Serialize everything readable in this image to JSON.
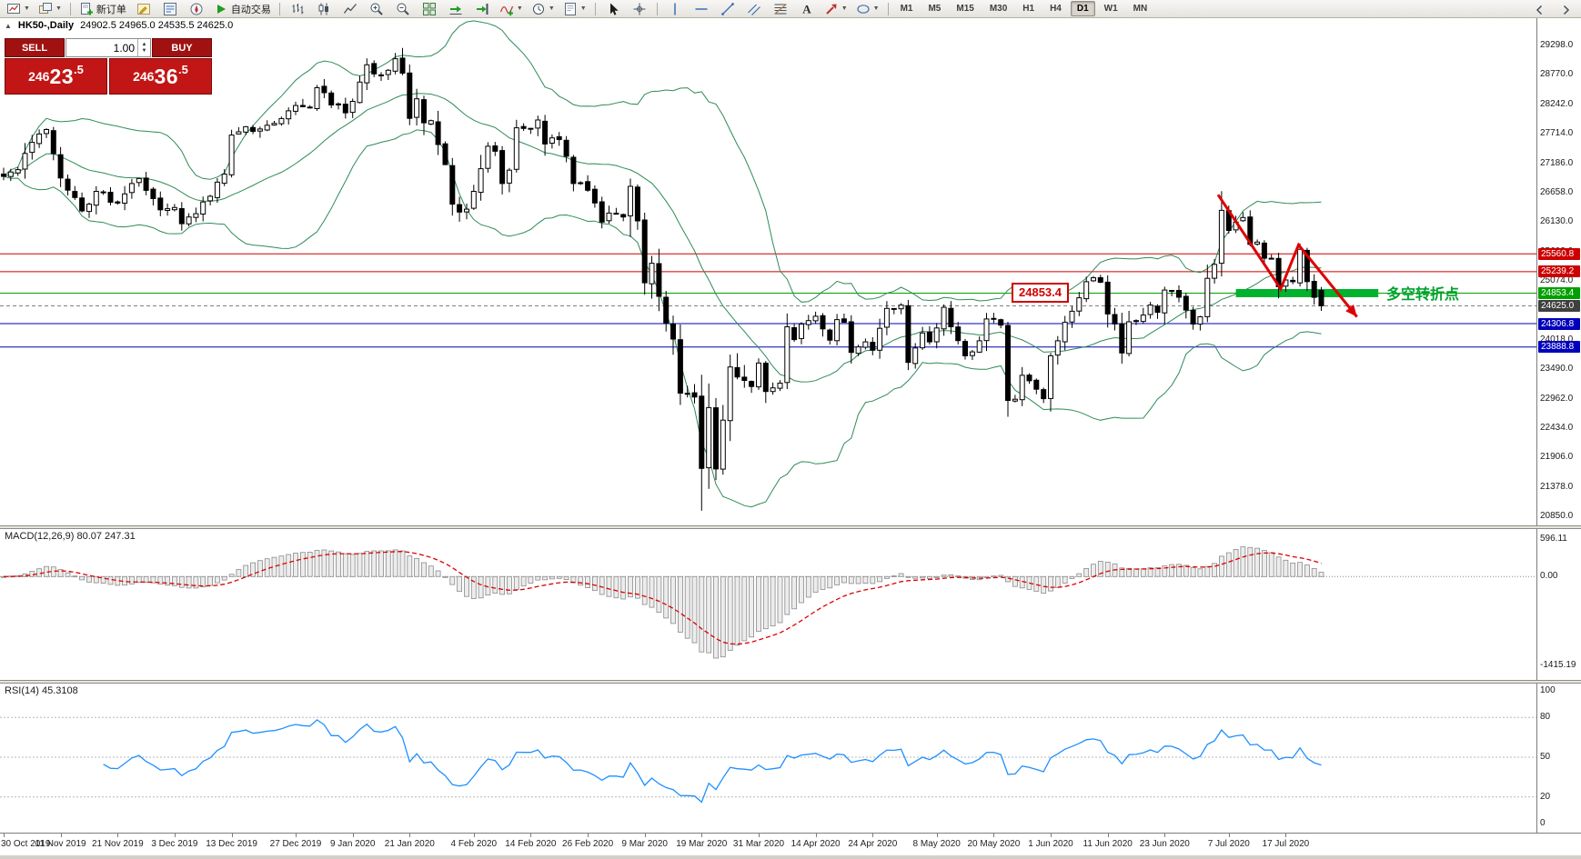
{
  "header": {
    "collapse_icon": "▲"
  },
  "toolbar": {
    "new_order_label": "新订单",
    "autotrade_label": "自动交易",
    "groups": [
      {
        "type": "icons",
        "items": [
          {
            "icon": "new-chart",
            "name": "new-chart",
            "caret": true
          },
          {
            "icon": "profiles",
            "name": "chart-profiles",
            "caret": true
          }
        ]
      },
      {
        "type": "sep"
      },
      {
        "type": "button",
        "icon": "new-order",
        "name": "new-order",
        "label": "新订单"
      },
      {
        "type": "icons",
        "items": [
          {
            "icon": "metaeditor",
            "name": "metaeditor"
          },
          {
            "icon": "market-watch",
            "name": "market-watch"
          },
          {
            "icon": "navigator",
            "name": "navigator"
          }
        ]
      },
      {
        "type": "button",
        "icon": "autotrade",
        "name": "autotrade",
        "label": "自动交易"
      },
      {
        "type": "sep"
      },
      {
        "type": "icons",
        "items": [
          {
            "icon": "bar-chart",
            "name": "bar-chart-mode"
          },
          {
            "icon": "candles",
            "name": "candlestick-mode"
          },
          {
            "icon": "line-chart",
            "name": "line-chart-mode"
          }
        ]
      },
      {
        "type": "icons",
        "items": [
          {
            "icon": "zoom-in",
            "name": "zoom-in"
          },
          {
            "icon": "zoom-out",
            "name": "zoom-out"
          }
        ]
      },
      {
        "type": "icons",
        "items": [
          {
            "icon": "tile-windows",
            "name": "tile-windows"
          }
        ]
      },
      {
        "type": "icons",
        "items": [
          {
            "icon": "auto-scroll",
            "name": "auto-scroll"
          },
          {
            "icon": "chart-shift",
            "name": "chart-shift"
          }
        ]
      },
      {
        "type": "icons",
        "items": [
          {
            "icon": "indicators",
            "name": "indicators-list",
            "caret": true
          },
          {
            "icon": "periods",
            "name": "periods",
            "caret": true
          },
          {
            "icon": "templates",
            "name": "templates",
            "caret": true
          }
        ]
      },
      {
        "type": "sep"
      },
      {
        "type": "icons",
        "items": [
          {
            "icon": "cursor",
            "name": "cursor-tool"
          },
          {
            "icon": "crosshair",
            "name": "crosshair-tool"
          }
        ]
      },
      {
        "type": "sep"
      },
      {
        "type": "icons",
        "items": [
          {
            "icon": "vline",
            "name": "vertical-line-tool"
          },
          {
            "icon": "hline",
            "name": "horizontal-line-tool"
          },
          {
            "icon": "trendline",
            "name": "trendline-tool"
          },
          {
            "icon": "channel",
            "name": "channel-tool"
          },
          {
            "icon": "fibonacci",
            "name": "fibonacci-tool"
          },
          {
            "icon": "text",
            "name": "text-tool"
          },
          {
            "icon": "arrows",
            "name": "arrows-tool",
            "caret": true
          },
          {
            "icon": "shapes",
            "name": "shapes-tool",
            "caret": true
          }
        ]
      },
      {
        "type": "sep"
      },
      {
        "type": "timeframes"
      }
    ],
    "timeframes": [
      {
        "label": "M1"
      },
      {
        "label": "M5"
      },
      {
        "label": "M15"
      },
      {
        "label": "M30"
      },
      {
        "label": "H1"
      },
      {
        "label": "H4"
      },
      {
        "label": "D1",
        "active": true
      },
      {
        "label": "W1"
      },
      {
        "label": "MN"
      }
    ],
    "right_icons": [
      {
        "icon": "chevron-left",
        "name": "toolbar-scroll-left"
      },
      {
        "icon": "chevron-right",
        "name": "toolbar-scroll-right"
      }
    ]
  },
  "one_click": {
    "sell_label": "SELL",
    "buy_label": "BUY",
    "volume": "1.00",
    "sell_price": {
      "prefix": "246",
      "big": "23",
      "pip": ".5",
      "full": "24623.5"
    },
    "buy_price": {
      "prefix": "246",
      "big": "36",
      "pip": ".5",
      "full": "24636.5"
    }
  },
  "chart_data": {
    "type": "candlestick",
    "title": "HK50-,Daily",
    "symbol": "HK50-",
    "timeframe": "Daily",
    "ohlc_text": "24902.5 24965.0 24535.5 24625.0",
    "candles": 186,
    "last_candle": [
      24902.5,
      24965.0,
      24535.5,
      24625.0
    ],
    "forced_low": {
      "index": 98,
      "price": 20950
    },
    "forced_high": {
      "index": 171,
      "price": 26480
    },
    "close_anchors": [
      [
        0,
        26950
      ],
      [
        2,
        27070
      ],
      [
        4,
        27560
      ],
      [
        6,
        27790
      ],
      [
        8,
        26920
      ],
      [
        10,
        26570
      ],
      [
        11,
        26330
      ],
      [
        13,
        26680
      ],
      [
        16,
        26470
      ],
      [
        19,
        26910
      ],
      [
        22,
        26350
      ],
      [
        24,
        26390
      ],
      [
        25,
        26100
      ],
      [
        26,
        26220
      ],
      [
        28,
        26490
      ],
      [
        31,
        26990
      ],
      [
        32,
        27690
      ],
      [
        34,
        27840
      ],
      [
        36,
        27800
      ],
      [
        38,
        27900
      ],
      [
        41,
        28220
      ],
      [
        43,
        28190
      ],
      [
        44,
        28540
      ],
      [
        45,
        28450
      ],
      [
        46,
        28230
      ],
      [
        48,
        28090
      ],
      [
        50,
        28640
      ],
      [
        51,
        28950
      ],
      [
        53,
        28770
      ],
      [
        55,
        29060
      ],
      [
        56,
        28800
      ],
      [
        57,
        27990
      ],
      [
        58,
        28340
      ],
      [
        59,
        27910
      ],
      [
        60,
        27950
      ],
      [
        62,
        27160
      ],
      [
        63,
        26450
      ],
      [
        64,
        26310
      ],
      [
        65,
        26360
      ],
      [
        66,
        26680
      ],
      [
        68,
        27490
      ],
      [
        69,
        27400
      ],
      [
        70,
        26820
      ],
      [
        71,
        27060
      ],
      [
        72,
        27820
      ],
      [
        74,
        27810
      ],
      [
        75,
        27960
      ],
      [
        76,
        27530
      ],
      [
        78,
        27610
      ],
      [
        79,
        27310
      ],
      [
        80,
        26820
      ],
      [
        82,
        26700
      ],
      [
        84,
        26130
      ],
      [
        85,
        26290
      ],
      [
        87,
        26220
      ],
      [
        88,
        26770
      ],
      [
        89,
        26150
      ],
      [
        90,
        25040
      ],
      [
        91,
        25390
      ],
      [
        93,
        24310
      ],
      [
        94,
        24030
      ],
      [
        95,
        23060
      ],
      [
        97,
        22990
      ],
      [
        98,
        21710
      ],
      [
        99,
        22800
      ],
      [
        100,
        21700
      ],
      [
        102,
        23530
      ],
      [
        103,
        23350
      ],
      [
        105,
        23180
      ],
      [
        106,
        23600
      ],
      [
        107,
        23090
      ],
      [
        109,
        23240
      ],
      [
        110,
        24250
      ],
      [
        111,
        24020
      ],
      [
        112,
        24300
      ],
      [
        114,
        24440
      ],
      [
        116,
        24010
      ],
      [
        117,
        24380
      ],
      [
        118,
        24330
      ],
      [
        119,
        23790
      ],
      [
        121,
        23980
      ],
      [
        122,
        23830
      ],
      [
        124,
        24580
      ],
      [
        126,
        24640
      ],
      [
        127,
        23610
      ],
      [
        128,
        23870
      ],
      [
        129,
        24140
      ],
      [
        130,
        23980
      ],
      [
        131,
        24230
      ],
      [
        132,
        24600
      ],
      [
        133,
        24250
      ],
      [
        135,
        23730
      ],
      [
        136,
        23800
      ],
      [
        137,
        24000
      ],
      [
        138,
        24390
      ],
      [
        139,
        24400
      ],
      [
        140,
        24280
      ],
      [
        141,
        22930
      ],
      [
        142,
        22950
      ],
      [
        143,
        23380
      ],
      [
        145,
        23130
      ],
      [
        146,
        22960
      ],
      [
        147,
        23730
      ],
      [
        148,
        24000
      ],
      [
        149,
        24330
      ],
      [
        151,
        24770
      ],
      [
        152,
        25060
      ],
      [
        154,
        25050
      ],
      [
        155,
        24480
      ],
      [
        156,
        24300
      ],
      [
        157,
        23780
      ],
      [
        158,
        24340
      ],
      [
        160,
        24460
      ],
      [
        161,
        24640
      ],
      [
        162,
        24510
      ],
      [
        163,
        24910
      ],
      [
        165,
        24780
      ],
      [
        166,
        24550
      ],
      [
        167,
        24300
      ],
      [
        168,
        24430
      ],
      [
        169,
        25120
      ],
      [
        170,
        25370
      ],
      [
        171,
        26340
      ],
      [
        172,
        25980
      ],
      [
        173,
        26130
      ],
      [
        174,
        26210
      ],
      [
        175,
        25730
      ],
      [
        176,
        25770
      ],
      [
        177,
        25480
      ],
      [
        178,
        25480
      ],
      [
        179,
        24970
      ],
      [
        180,
        25090
      ],
      [
        181,
        25060
      ],
      [
        182,
        25640
      ],
      [
        183,
        25060
      ],
      [
        184,
        24780
      ],
      [
        185,
        24625
      ]
    ],
    "bollinger": {
      "period": 20,
      "deviation": 2,
      "color": "#2e8b57"
    },
    "y_axis": {
      "top": 29298.0,
      "bottom": 20850.0,
      "labels": [
        "29298.0",
        "28770.0",
        "28242.0",
        "27714.0",
        "27186.0",
        "26658.0",
        "26130.0",
        "25602.0",
        "25074.0",
        "24546.0",
        "24018.0",
        "23490.0",
        "22962.0",
        "22434.0",
        "21906.0",
        "21378.0",
        "20850.0"
      ]
    },
    "x_labels": [
      [
        "30 Oct 2019",
        0
      ],
      [
        "11 Nov 2019",
        8
      ],
      [
        "21 Nov 2019",
        16
      ],
      [
        "3 Dec 2019",
        24
      ],
      [
        "13 Dec 2019",
        32
      ],
      [
        "27 Dec 2019",
        41
      ],
      [
        "9 Jan 2020",
        49
      ],
      [
        "21 Jan 2020",
        57
      ],
      [
        "4 Feb 2020",
        66
      ],
      [
        "14 Feb 2020",
        74
      ],
      [
        "26 Feb 2020",
        82
      ],
      [
        "9 Mar 2020",
        90
      ],
      [
        "19 Mar 2020",
        98
      ],
      [
        "31 Mar 2020",
        106
      ],
      [
        "14 Apr 2020",
        114
      ],
      [
        "24 Apr 2020",
        122
      ],
      [
        "8 May 2020",
        131
      ],
      [
        "20 May 2020",
        139
      ],
      [
        "1 Jun 2020",
        147
      ],
      [
        "11 Jun 2020",
        155
      ],
      [
        "23 Jun 2020",
        163
      ],
      [
        "7 Jul 2020",
        172
      ],
      [
        "17 Jul 2020",
        180
      ]
    ],
    "hlines": [
      {
        "value": 25560.8,
        "label": "25560.8",
        "color": "#cc0000"
      },
      {
        "value": 25239.2,
        "label": "25239.2",
        "color": "#cc0000"
      },
      {
        "value": 24853.4,
        "label": "24853.4",
        "color": "#00a000"
      },
      {
        "value": 24306.8,
        "label": "24306.8",
        "color": "#0000bb"
      },
      {
        "value": 23888.8,
        "label": "23888.8",
        "color": "#0000bb"
      }
    ],
    "current_price": {
      "value": 24625.0,
      "label": "24625.0",
      "badge_color": "#3f3f3f",
      "line_color": "#808080"
    },
    "annotations": {
      "price_flag": {
        "text": "24853.4",
        "color": "#d00000"
      },
      "turning_point": {
        "text": "多空转折点",
        "color": "#00a32e"
      },
      "green_bar": {
        "price": 24853.4,
        "i_start": 173,
        "i_end": 193,
        "color": "#00b22d"
      },
      "zigzag": {
        "color": "#dd0000",
        "points": [
          [
            170.5,
            26620
          ],
          [
            179.3,
            24930
          ],
          [
            181.8,
            25720
          ],
          [
            190,
            24430
          ]
        ]
      }
    },
    "macd": {
      "label_full": "MACD(12,26,9) 80.07 247.31",
      "fast": 12,
      "slow": 26,
      "signal": 9,
      "value_macd": "80.07",
      "value_signal": "247.31",
      "axis_labels": [
        "596.11",
        "0.00",
        "-1415.19"
      ],
      "histogram_fill": "#ececec",
      "histogram_stroke": "#8a8a8a",
      "signal_color": "#dd0000"
    },
    "rsi": {
      "label_full": "RSI(14) 45.3108",
      "period": 14,
      "value": "45.3108",
      "axis_labels": [
        "100",
        "80",
        "50",
        "20",
        "0"
      ],
      "levels": [
        80,
        50,
        20
      ],
      "line_color": "#1e90ff"
    }
  }
}
